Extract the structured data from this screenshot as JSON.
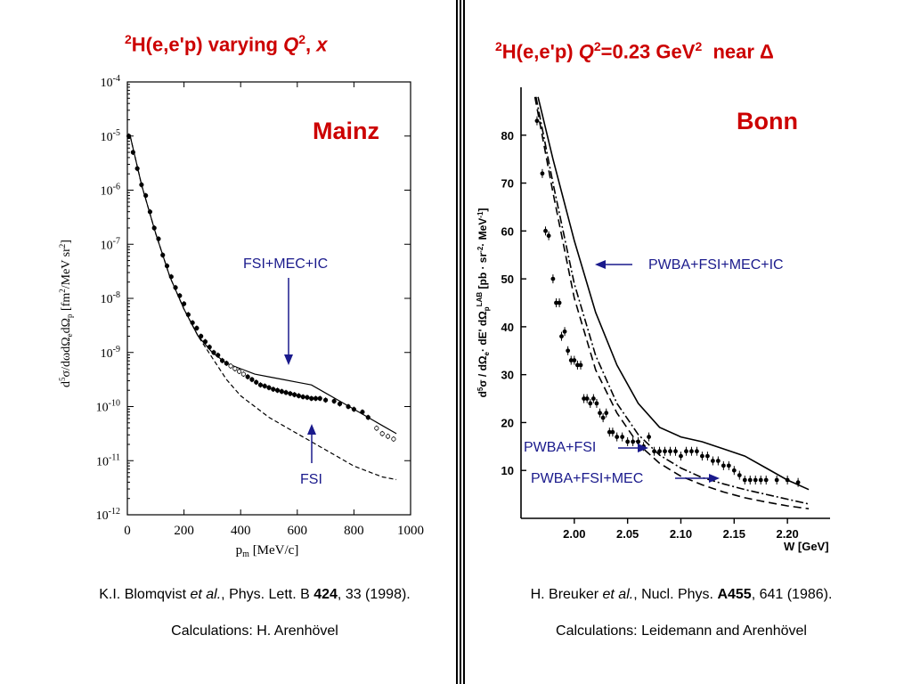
{
  "left": {
    "title": {
      "sup": "2",
      "main": "H(e,e'p) varying ",
      "q": "Q",
      "q_sup": "2",
      "sep": ", ",
      "x": "x"
    },
    "lab_label": "Mainz",
    "citation": {
      "pre": "K.I. Blomqvist ",
      "etal": "et al.",
      "mid": ", Phys. Lett. B ",
      "vol": "424",
      "post": ", 33 (1998)."
    },
    "calc": "Calculations:  H. Arenhövel",
    "arrow_upper": "FSI+MEC+IC",
    "arrow_lower": "FSI"
  },
  "right": {
    "title": {
      "sup": "2",
      "main": "H(e,e'p) ",
      "q": "Q",
      "q_sup": "2",
      "value": "=0.23 GeV",
      "unit_sup": "2",
      "near": "  near ",
      "delta": "Δ"
    },
    "lab_label": "Bonn",
    "citation": {
      "pre": "H. Breuker ",
      "etal": "et al.",
      "mid": ", Nucl. Phys. ",
      "vol": "A455",
      "post": ", 641 (1986)."
    },
    "calc": "Calculations:  Leidemann and Arenhövel",
    "label_1": "PWBA+FSI+MEC+IC",
    "label_2": "PWBA+FSI",
    "label_3": "PWBA+FSI+MEC"
  },
  "chart_data": [
    {
      "type": "scatter",
      "xlabel": "p_m [MeV/c]",
      "ylabel": "d^5σ/dωdΩ_e dΩ_p [fm^2/MeV sr^2]",
      "xticks": [
        "0",
        "200",
        "400",
        "600",
        "800",
        "1000"
      ],
      "yticks": [
        "10^-4",
        "10^-5",
        "10^-6",
        "10^-7",
        "10^-8",
        "10^-9",
        "10^-10",
        "10^-11",
        "10^-12"
      ],
      "xlim": [
        0,
        1000
      ],
      "ylim_log10": [
        -12,
        -4
      ],
      "series": [
        {
          "name": "FSI+MEC+IC",
          "style": "solid",
          "x": [
            10,
            50,
            100,
            150,
            200,
            250,
            300,
            350,
            400,
            450,
            500,
            550,
            600,
            650,
            700,
            750,
            800,
            850,
            900,
            950
          ],
          "y": [
            -5.0,
            -5.9,
            -6.8,
            -7.6,
            -8.2,
            -8.7,
            -9.0,
            -9.2,
            -9.3,
            -9.4,
            -9.45,
            -9.5,
            -9.55,
            -9.6,
            -9.75,
            -9.9,
            -10.05,
            -10.2,
            -10.35,
            -10.5
          ]
        },
        {
          "name": "FSI",
          "style": "dashed",
          "x": [
            10,
            50,
            100,
            150,
            200,
            250,
            300,
            350,
            400,
            450,
            500,
            550,
            600,
            650,
            700,
            750,
            800,
            850,
            900,
            950
          ],
          "y": [
            -5.0,
            -5.9,
            -6.8,
            -7.6,
            -8.2,
            -8.7,
            -9.1,
            -9.5,
            -9.8,
            -10.0,
            -10.2,
            -10.35,
            -10.5,
            -10.65,
            -10.8,
            -10.95,
            -11.1,
            -11.2,
            -11.3,
            -11.35
          ]
        },
        {
          "name": "data",
          "style": "points",
          "x": [
            5,
            20,
            35,
            50,
            65,
            80,
            95,
            110,
            125,
            140,
            155,
            170,
            185,
            200,
            215,
            230,
            245,
            260,
            275,
            290,
            305,
            320,
            335,
            350,
            365,
            380,
            395,
            410,
            425,
            440,
            455,
            470,
            485,
            500,
            515,
            530,
            545,
            560,
            575,
            590,
            605,
            620,
            635,
            650,
            665,
            680,
            700,
            730,
            750,
            780,
            800,
            830,
            850,
            880,
            900,
            920,
            940
          ],
          "y": [
            -5.0,
            -5.3,
            -5.6,
            -5.9,
            -6.1,
            -6.4,
            -6.7,
            -6.9,
            -7.2,
            -7.4,
            -7.6,
            -7.8,
            -7.95,
            -8.1,
            -8.3,
            -8.45,
            -8.55,
            -8.7,
            -8.8,
            -8.9,
            -9.0,
            -9.05,
            -9.15,
            -9.2,
            -9.25,
            -9.3,
            -9.35,
            -9.4,
            -9.45,
            -9.5,
            -9.55,
            -9.6,
            -9.62,
            -9.65,
            -9.68,
            -9.7,
            -9.72,
            -9.74,
            -9.76,
            -9.78,
            -9.8,
            -9.82,
            -9.83,
            -9.85,
            -9.85,
            -9.85,
            -9.88,
            -9.9,
            -9.95,
            -10.0,
            -10.05,
            -10.1,
            -10.2,
            -10.4,
            -10.5,
            -10.55,
            -10.6
          ]
        }
      ]
    },
    {
      "type": "line",
      "xlabel": "W [GeV]",
      "ylabel": "d^5σ/dΩ_e·dE'dΩ_p^LAB [pb·sr^-2·MeV^-1]",
      "xticks": [
        "2.00",
        "2.05",
        "2.10",
        "2.15",
        "2.20"
      ],
      "yticks": [
        "10",
        "20",
        "30",
        "40",
        "50",
        "60",
        "70",
        "80"
      ],
      "xlim": [
        1.95,
        2.24
      ],
      "ylim": [
        0,
        90
      ],
      "series": [
        {
          "name": "PWBA+FSI+MEC+IC",
          "style": "solid",
          "x": [
            1.966,
            1.98,
            2.0,
            2.02,
            2.04,
            2.06,
            2.08,
            2.1,
            2.12,
            2.14,
            2.16,
            2.18,
            2.2,
            2.22
          ],
          "y": [
            88,
            75,
            58,
            43,
            32,
            24,
            19,
            17,
            16,
            14.5,
            13,
            10.5,
            8,
            6
          ]
        },
        {
          "name": "PWBA+FSI",
          "style": "dashed",
          "x": [
            1.963,
            1.98,
            2.0,
            2.02,
            2.04,
            2.06,
            2.08,
            2.1,
            2.12,
            2.14,
            2.16,
            2.18,
            2.2,
            2.22
          ],
          "y": [
            88,
            68,
            46,
            31,
            22,
            15.5,
            11.5,
            8.8,
            7.0,
            5.5,
            4.3,
            3.4,
            2.6,
            2.0
          ]
        },
        {
          "name": "PWBA+FSI+MEC",
          "style": "dashdot",
          "x": [
            1.964,
            1.98,
            2.0,
            2.02,
            2.04,
            2.06,
            2.08,
            2.1,
            2.12,
            2.14,
            2.16,
            2.18,
            2.2,
            2.22
          ],
          "y": [
            88,
            70,
            49,
            34,
            24,
            17.5,
            13.2,
            10.5,
            8.5,
            7.2,
            6.0,
            5.0,
            4.0,
            3.0
          ]
        },
        {
          "name": "data",
          "style": "points",
          "x": [
            1.965,
            1.97,
            1.973,
            1.976,
            1.98,
            1.983,
            1.986,
            1.988,
            1.991,
            1.994,
            1.997,
            2.0,
            2.003,
            2.006,
            2.009,
            2.012,
            2.015,
            2.018,
            2.021,
            2.024,
            2.027,
            2.03,
            2.033,
            2.036,
            2.04,
            2.045,
            2.05,
            2.055,
            2.06,
            2.065,
            2.07,
            2.075,
            2.08,
            2.085,
            2.09,
            2.095,
            2.1,
            2.105,
            2.11,
            2.115,
            2.12,
            2.125,
            2.13,
            2.135,
            2.14,
            2.145,
            2.15,
            2.155,
            2.16,
            2.165,
            2.17,
            2.175,
            2.18,
            2.19,
            2.2,
            2.21
          ],
          "y": [
            83,
            72,
            60,
            59,
            50,
            45,
            45,
            38,
            39,
            35,
            33,
            33,
            32,
            32,
            25,
            25,
            24,
            25,
            24,
            22,
            21,
            22,
            18,
            18,
            17,
            17,
            16,
            16,
            16,
            15,
            17,
            14,
            14,
            14,
            14,
            14,
            13,
            14,
            14,
            14,
            13,
            13,
            12,
            12,
            11,
            11,
            10,
            9,
            8,
            8,
            8,
            8,
            8,
            8,
            8,
            7.5
          ]
        }
      ]
    }
  ]
}
